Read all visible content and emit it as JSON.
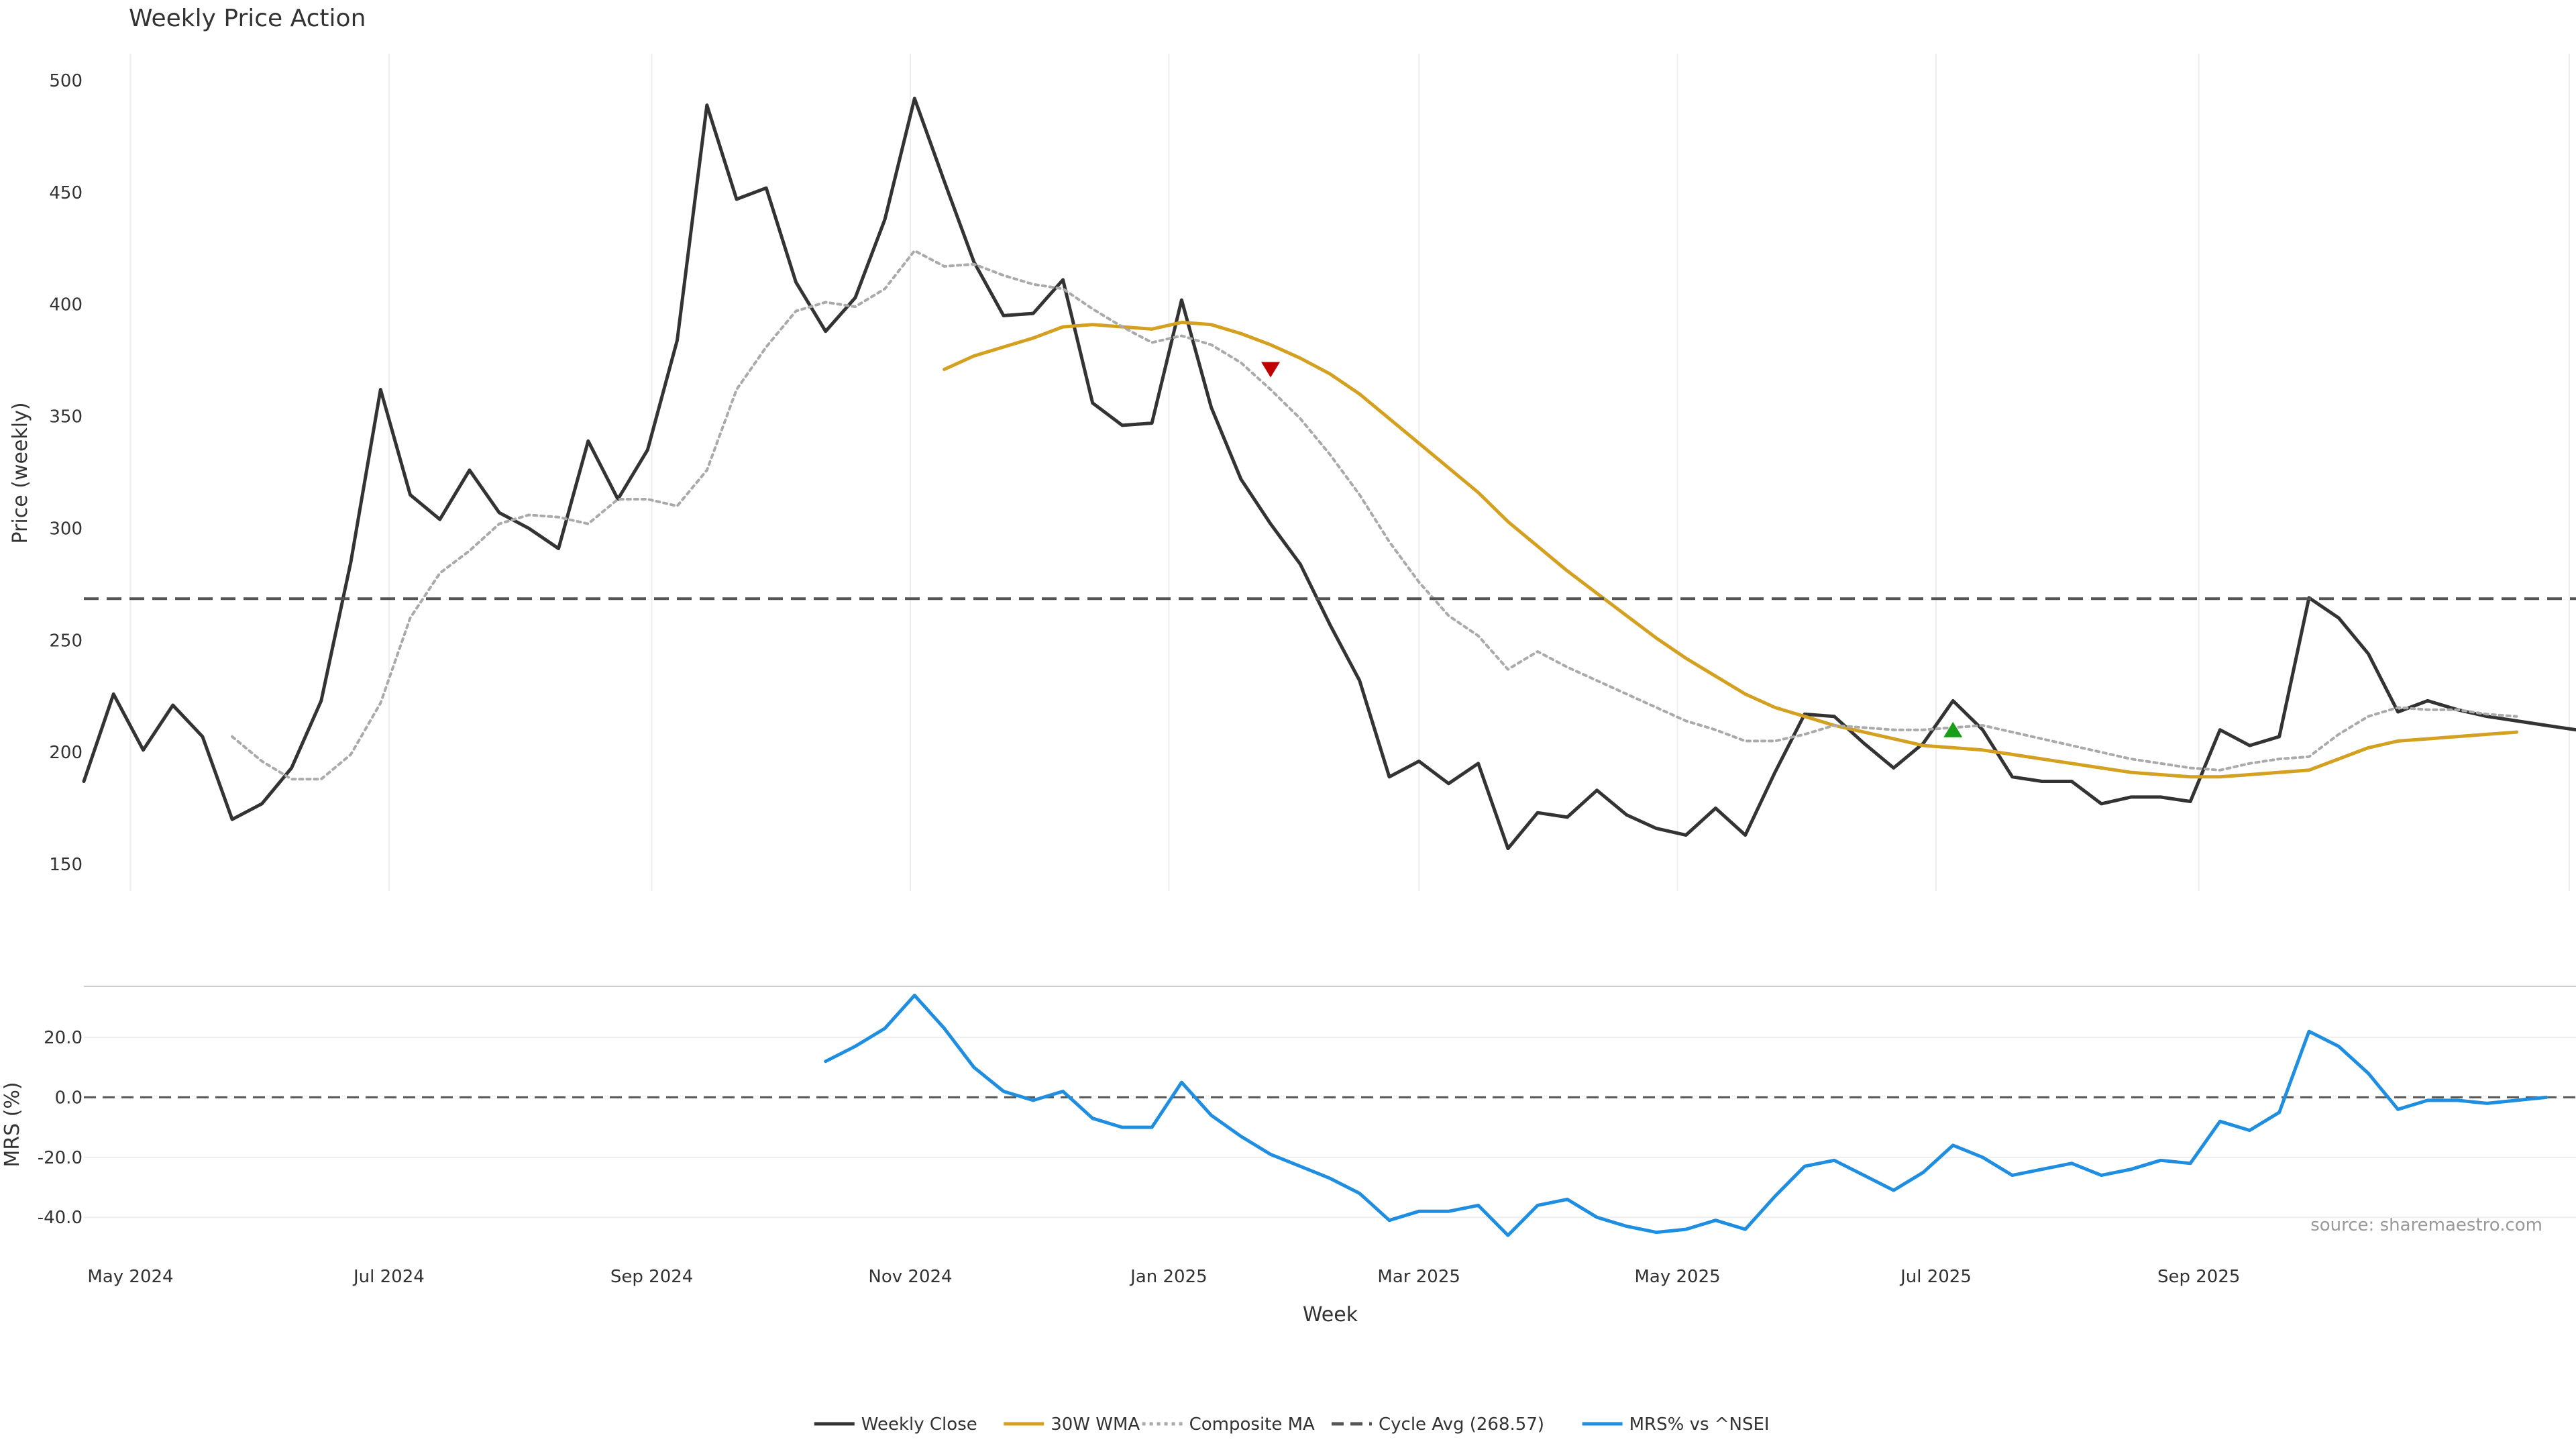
{
  "chart_data": [
    {
      "type": "line",
      "panel": "price",
      "title": "Weekly Price Action",
      "xlabel": "",
      "ylabel": "Price (weekly)",
      "ylim": [
        138,
        512
      ],
      "yticks": [
        150,
        200,
        250,
        300,
        350,
        400,
        450,
        500
      ],
      "grid": "vertical",
      "x_start": "2024-04-20",
      "x_end": "2025-11-29",
      "series": [
        {
          "name": "Weekly Close",
          "color": "#333333",
          "style": "solid",
          "x": [
            "2024-04-20",
            "2024-04-27",
            "2024-05-04",
            "2024-05-11",
            "2024-05-18",
            "2024-05-25",
            "2024-06-01",
            "2024-06-08",
            "2024-06-15",
            "2024-06-22",
            "2024-06-29",
            "2024-07-06",
            "2024-07-13",
            "2024-07-20",
            "2024-07-27",
            "2024-08-03",
            "2024-08-10",
            "2024-08-17",
            "2024-08-24",
            "2024-08-31",
            "2024-09-07",
            "2024-09-14",
            "2024-09-21",
            "2024-09-28",
            "2024-10-05",
            "2024-10-12",
            "2024-10-19",
            "2024-10-26",
            "2024-11-02",
            "2024-11-09",
            "2024-11-16",
            "2024-11-23",
            "2024-11-30",
            "2024-12-07",
            "2024-12-14",
            "2024-12-21",
            "2024-12-28",
            "2025-01-04",
            "2025-01-11",
            "2025-01-18",
            "2025-01-25",
            "2025-02-01",
            "2025-02-08",
            "2025-02-15",
            "2025-02-22",
            "2025-03-01",
            "2025-03-08",
            "2025-03-15",
            "2025-03-22",
            "2025-03-29",
            "2025-04-05",
            "2025-04-12",
            "2025-04-19",
            "2025-04-26",
            "2025-05-03",
            "2025-05-10",
            "2025-05-17",
            "2025-05-24",
            "2025-05-31",
            "2025-06-07",
            "2025-06-14",
            "2025-06-21",
            "2025-06-28",
            "2025-07-05",
            "2025-07-12",
            "2025-07-19",
            "2025-07-26",
            "2025-08-02",
            "2025-08-09",
            "2025-08-16",
            "2025-08-23",
            "2025-08-30",
            "2025-09-06",
            "2025-09-13",
            "2025-09-20",
            "2025-09-27",
            "2025-10-04",
            "2025-10-11",
            "2025-10-18",
            "2025-10-25",
            "2025-11-01",
            "2025-11-08",
            "2025-11-15",
            "2025-11-22",
            "2025-11-29"
          ],
          "values": [
            187,
            226,
            201,
            221,
            207,
            170,
            177,
            193,
            223,
            285,
            362,
            315,
            304,
            326,
            307,
            300,
            291,
            339,
            313,
            335,
            384,
            489,
            447,
            452,
            410,
            388,
            403,
            438,
            492,
            455,
            419,
            395,
            396,
            411,
            356,
            346,
            347,
            402,
            354,
            322,
            302,
            284,
            257,
            232,
            189,
            196,
            186,
            195,
            157,
            173,
            171,
            183,
            172,
            166,
            163,
            175,
            163,
            191,
            217,
            216,
            204,
            193,
            204,
            223,
            210,
            189,
            187,
            187,
            177,
            180,
            180,
            178,
            210,
            203,
            207,
            269,
            260,
            244,
            218,
            223,
            219,
            216,
            214,
            212,
            210
          ]
        },
        {
          "name": "30W WMA",
          "color": "#d4a020",
          "style": "solid",
          "x": [
            "2024-11-09",
            "2024-11-16",
            "2024-11-23",
            "2024-11-30",
            "2024-12-07",
            "2024-12-14",
            "2024-12-21",
            "2024-12-28",
            "2025-01-04",
            "2025-01-11",
            "2025-01-18",
            "2025-01-25",
            "2025-02-01",
            "2025-02-08",
            "2025-02-15",
            "2025-02-22",
            "2025-03-01",
            "2025-03-08",
            "2025-03-15",
            "2025-03-22",
            "2025-03-29",
            "2025-04-05",
            "2025-04-12",
            "2025-04-19",
            "2025-04-26",
            "2025-05-03",
            "2025-05-10",
            "2025-05-17",
            "2025-05-24",
            "2025-05-31",
            "2025-06-07",
            "2025-06-14",
            "2025-06-21",
            "2025-06-28",
            "2025-07-05",
            "2025-07-12",
            "2025-07-19",
            "2025-07-26",
            "2025-08-02",
            "2025-08-09",
            "2025-08-16",
            "2025-08-23",
            "2025-08-30",
            "2025-09-06",
            "2025-09-13",
            "2025-09-20",
            "2025-09-27",
            "2025-10-04",
            "2025-10-11",
            "2025-10-18",
            "2025-10-25",
            "2025-11-01",
            "2025-11-08",
            "2025-11-15"
          ],
          "values": [
            371,
            377,
            381,
            385,
            390,
            391,
            390,
            389,
            392,
            391,
            387,
            382,
            376,
            369,
            360,
            349,
            338,
            327,
            316,
            303,
            292,
            281,
            271,
            261,
            251,
            242,
            234,
            226,
            220,
            216,
            212,
            209,
            206,
            203,
            202,
            201,
            199,
            197,
            195,
            193,
            191,
            190,
            189,
            189,
            190,
            191,
            192,
            197,
            202,
            205,
            206,
            207,
            208,
            209
          ]
        },
        {
          "name": "Composite MA",
          "color": "#aaaaaa",
          "style": "dotted",
          "x": [
            "2024-05-25",
            "2024-06-01",
            "2024-06-08",
            "2024-06-15",
            "2024-06-22",
            "2024-06-29",
            "2024-07-06",
            "2024-07-13",
            "2024-07-20",
            "2024-07-27",
            "2024-08-03",
            "2024-08-10",
            "2024-08-17",
            "2024-08-24",
            "2024-08-31",
            "2024-09-07",
            "2024-09-14",
            "2024-09-21",
            "2024-09-28",
            "2024-10-05",
            "2024-10-12",
            "2024-10-19",
            "2024-10-26",
            "2024-11-02",
            "2024-11-09",
            "2024-11-16",
            "2024-11-23",
            "2024-11-30",
            "2024-12-07",
            "2024-12-14",
            "2024-12-21",
            "2024-12-28",
            "2025-01-04",
            "2025-01-11",
            "2025-01-18",
            "2025-01-25",
            "2025-02-01",
            "2025-02-08",
            "2025-02-15",
            "2025-02-22",
            "2025-03-01",
            "2025-03-08",
            "2025-03-15",
            "2025-03-22",
            "2025-03-29",
            "2025-04-05",
            "2025-04-12",
            "2025-04-19",
            "2025-04-26",
            "2025-05-03",
            "2025-05-10",
            "2025-05-17",
            "2025-05-24",
            "2025-05-31",
            "2025-06-07",
            "2025-06-14",
            "2025-06-21",
            "2025-06-28",
            "2025-07-05",
            "2025-07-12",
            "2025-07-19",
            "2025-07-26",
            "2025-08-02",
            "2025-08-09",
            "2025-08-16",
            "2025-08-23",
            "2025-08-30",
            "2025-09-06",
            "2025-09-13",
            "2025-09-20",
            "2025-09-27",
            "2025-10-04",
            "2025-10-11",
            "2025-10-18",
            "2025-10-25",
            "2025-11-01",
            "2025-11-08",
            "2025-11-15"
          ],
          "values": [
            207,
            196,
            188,
            188,
            199,
            222,
            260,
            280,
            290,
            302,
            306,
            305,
            302,
            313,
            313,
            310,
            326,
            362,
            381,
            397,
            401,
            399,
            407,
            424,
            417,
            418,
            413,
            409,
            407,
            398,
            390,
            383,
            386,
            382,
            374,
            362,
            349,
            333,
            315,
            294,
            276,
            261,
            252,
            237,
            245,
            238,
            232,
            226,
            220,
            214,
            210,
            205,
            205,
            208,
            212,
            211,
            210,
            210,
            211,
            212,
            209,
            206,
            203,
            200,
            197,
            195,
            193,
            192,
            195,
            197,
            198,
            208,
            216,
            220,
            219,
            219,
            217,
            216
          ]
        },
        {
          "name": "Cycle Avg (268.57)",
          "color": "#555555",
          "style": "dashed",
          "value": 268.57
        }
      ],
      "markers": [
        {
          "type": "sell",
          "date": "2025-01-25",
          "value": 371,
          "color": "#c00000"
        },
        {
          "type": "buy",
          "date": "2025-07-05",
          "value": 210,
          "color": "#1a9e1a"
        }
      ]
    },
    {
      "type": "line",
      "panel": "mrs",
      "xlabel": "Week",
      "ylabel": "MRS (%)",
      "ylim": [
        -48,
        37
      ],
      "yticks": [
        "-40.0",
        "-20.0",
        "0.0",
        "20.0"
      ],
      "grid": "horizontal",
      "x_tick_labels": [
        "May 2024",
        "Jul 2024",
        "Sep 2024",
        "Nov 2024",
        "Jan 2025",
        "Mar 2025",
        "May 2025",
        "Jul 2025",
        "Sep 2025"
      ],
      "x_tick_dates": [
        "2024-05-01",
        "2024-07-01",
        "2024-09-01",
        "2024-11-01",
        "2025-01-01",
        "2025-03-01",
        "2025-05-01",
        "2025-07-01",
        "2025-09-01"
      ],
      "series": [
        {
          "name": "MRS% vs ^NSEI",
          "color": "#1f8ee0",
          "style": "solid",
          "x": [
            "2024-10-12",
            "2024-10-19",
            "2024-10-26",
            "2024-11-02",
            "2024-11-09",
            "2024-11-16",
            "2024-11-23",
            "2024-11-30",
            "2024-12-07",
            "2024-12-14",
            "2024-12-21",
            "2024-12-28",
            "2025-01-04",
            "2025-01-11",
            "2025-01-18",
            "2025-01-25",
            "2025-02-01",
            "2025-02-08",
            "2025-02-15",
            "2025-02-22",
            "2025-03-01",
            "2025-03-08",
            "2025-03-15",
            "2025-03-22",
            "2025-03-29",
            "2025-04-05",
            "2025-04-12",
            "2025-04-19",
            "2025-04-26",
            "2025-05-03",
            "2025-05-10",
            "2025-05-17",
            "2025-05-24",
            "2025-05-31",
            "2025-06-07",
            "2025-06-14",
            "2025-06-21",
            "2025-06-28",
            "2025-07-05",
            "2025-07-12",
            "2025-07-19",
            "2025-07-26",
            "2025-08-02",
            "2025-08-09",
            "2025-08-16",
            "2025-08-23",
            "2025-08-30",
            "2025-09-06",
            "2025-09-13",
            "2025-09-20",
            "2025-09-27",
            "2025-10-04",
            "2025-10-11",
            "2025-10-18",
            "2025-10-25",
            "2025-11-01",
            "2025-11-08",
            "2025-11-15",
            "2025-11-22"
          ],
          "values": [
            12,
            17,
            23,
            34,
            23,
            10,
            2,
            -1,
            2,
            -7,
            -10,
            -10,
            5,
            -6,
            -13,
            -19,
            -23,
            -27,
            -32,
            -41,
            -38,
            -38,
            -36,
            -46,
            -36,
            -34,
            -40,
            -43,
            -45,
            -44,
            -41,
            -44,
            -33,
            -23,
            -21,
            -26,
            -31,
            -25,
            -16,
            -20,
            -26,
            -24,
            -22,
            -26,
            -24,
            -21,
            -22,
            -8,
            -11,
            -5,
            22,
            17,
            8,
            -4,
            -1,
            -1,
            -2,
            -1,
            0
          ]
        }
      ]
    }
  ],
  "legend": {
    "placement": "bottom-center",
    "items": [
      {
        "label": "Weekly Close",
        "color": "#333333",
        "style": "solid"
      },
      {
        "label": "30W WMA",
        "color": "#d4a020",
        "style": "solid"
      },
      {
        "label": "Composite MA",
        "color": "#aaaaaa",
        "style": "dotted"
      },
      {
        "label": "Cycle Avg (268.57)",
        "color": "#555555",
        "style": "dashed"
      },
      {
        "label": "MRS% vs ^NSEI",
        "color": "#1f8ee0",
        "style": "solid"
      }
    ]
  },
  "watermark": "source: sharemaestro.com"
}
